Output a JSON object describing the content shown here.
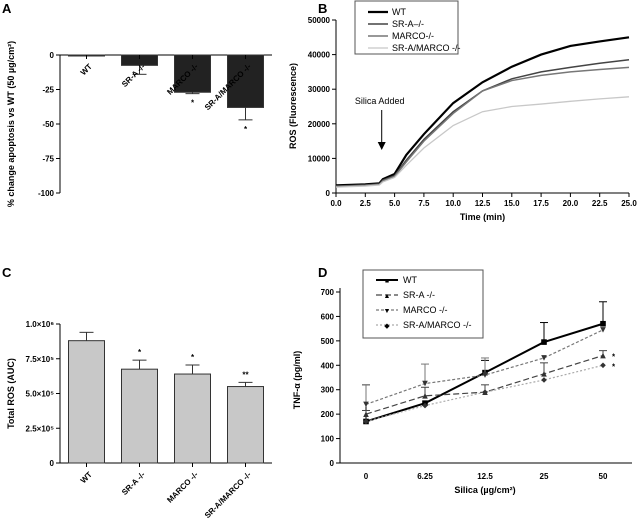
{
  "chart_data": [
    {
      "panel": "A",
      "type": "bar",
      "categories": [
        "WT",
        "SR-A -/-",
        "MARCO -/-",
        "SR-A/MARCO -/-"
      ],
      "values": [
        0,
        -7.5,
        -27,
        -38
      ],
      "errors": [
        0,
        6.5,
        1,
        9
      ],
      "significance": [
        "",
        "",
        "*",
        "*"
      ],
      "ylabel": "% change apoptosis vs WT (50 µg/cm²)",
      "ylim": [
        -100,
        0
      ],
      "yticks": [
        0,
        -25,
        -50,
        -75,
        -100
      ],
      "yticklabels": [
        "0",
        "-25",
        "-50",
        "-75",
        "-100"
      ],
      "color": "#222222"
    },
    {
      "panel": "B",
      "type": "line",
      "title": "",
      "xlabel": "Time (min)",
      "ylabel": "ROS  (Fluorescence)",
      "xlim": [
        0,
        25
      ],
      "ylim": [
        0,
        50000
      ],
      "xticks": [
        0,
        2.5,
        5,
        7.5,
        10,
        12.5,
        15,
        17.5,
        20,
        22.5,
        25
      ],
      "xticklabels": [
        "0.0",
        "2.5",
        "5.0",
        "7.5",
        "10.0",
        "12.5",
        "15.0",
        "17.5",
        "20.0",
        "22.5",
        "25.0"
      ],
      "yticks": [
        0,
        10000,
        20000,
        30000,
        40000,
        50000
      ],
      "yticklabels": [
        "0",
        "10000",
        "20000",
        "30000",
        "40000",
        "50000"
      ],
      "x": [
        0,
        2.5,
        3.7,
        4,
        5,
        6,
        7.5,
        10,
        12.5,
        15,
        17.5,
        20,
        22.5,
        25
      ],
      "series": [
        {
          "name": "WT",
          "color": "#000000",
          "values": [
            2200,
            2500,
            2800,
            4000,
            5500,
            11000,
            17000,
            26000,
            32000,
            36500,
            40000,
            42500,
            43800,
            45000
          ]
        },
        {
          "name": "SR-A–/-",
          "color": "#444444",
          "values": [
            2000,
            2300,
            2600,
            3700,
            5000,
            9500,
            15500,
            23500,
            29500,
            33000,
            35000,
            36300,
            37500,
            38500
          ]
        },
        {
          "name": "MARCO-/-",
          "color": "#777777",
          "values": [
            1900,
            2200,
            2500,
            3500,
            4800,
            9000,
            15000,
            23000,
            29500,
            32500,
            34000,
            35000,
            35700,
            36300
          ]
        },
        {
          "name": "SR-A/MARCO -/-",
          "color": "#c8c8c8",
          "values": [
            1700,
            2000,
            2300,
            3200,
            4500,
            8000,
            13000,
            19500,
            23500,
            25000,
            25700,
            26500,
            27200,
            27800
          ]
        }
      ],
      "annotation": {
        "text": "Silica Added",
        "x": 3.9
      },
      "legend": "top-left"
    },
    {
      "panel": "C",
      "type": "bar",
      "categories": [
        "WT",
        "SR-A -/-",
        "MARCO -/-",
        "SR-A/MARCO -/-"
      ],
      "values": [
        880000,
        675000,
        640000,
        550000
      ],
      "errors": [
        60000,
        65000,
        65000,
        30000
      ],
      "significance": [
        "",
        "*",
        "*",
        "**"
      ],
      "ylabel": "Total  ROS (AUC)",
      "ylim": [
        0,
        1000000
      ],
      "yticks": [
        0,
        250000,
        500000,
        750000,
        1000000
      ],
      "yticklabels": [
        "0",
        "2.5×10⁵",
        "5.0×10⁵",
        "7.5×10⁵",
        "1.0×10⁶"
      ],
      "color": "#c8c8c8"
    },
    {
      "panel": "D",
      "type": "line",
      "xlabel": "Silica (µg/cm²)",
      "ylabel": "TNF-α (pg/ml)",
      "categories": [
        "0",
        "6.25",
        "12.5",
        "25",
        "50"
      ],
      "ylim": [
        0,
        700
      ],
      "yticks": [
        0,
        100,
        200,
        300,
        400,
        500,
        600,
        700
      ],
      "yticklabels": [
        "0",
        "100",
        "200",
        "300",
        "400",
        "500",
        "600",
        "700"
      ],
      "series": [
        {
          "name": "WT",
          "color": "#000000",
          "marker": "■",
          "values": [
            170,
            245,
            370,
            495,
            570
          ],
          "errors": [
            150,
            0,
            50,
            80,
            90
          ],
          "significance": [
            "",
            "",
            "",
            "",
            ""
          ]
        },
        {
          "name": "SR-A -/-",
          "color": "#444444",
          "marker": "▲",
          "values": [
            200,
            275,
            290,
            365,
            440
          ],
          "errors": [
            15,
            35,
            30,
            45,
            20
          ],
          "significance": [
            "",
            "",
            "",
            "",
            "*"
          ]
        },
        {
          "name": "MARCO -/-",
          "color": "#777777",
          "marker": "▼",
          "values": [
            240,
            325,
            360,
            430,
            545
          ],
          "errors": [
            80,
            80,
            70,
            0,
            0
          ],
          "significance": [
            "",
            "",
            "",
            "",
            ""
          ]
        },
        {
          "name": "SR-A/MARCO -/-",
          "color": "#aaaaaa",
          "marker": "◆",
          "values": [
            170,
            235,
            290,
            340,
            400
          ],
          "errors": [
            0,
            0,
            0,
            0,
            0
          ],
          "significance": [
            "",
            "",
            "",
            "",
            "*"
          ]
        }
      ],
      "legend": "top-left"
    }
  ],
  "panel_labels": [
    "A",
    "B",
    "C",
    "D"
  ]
}
